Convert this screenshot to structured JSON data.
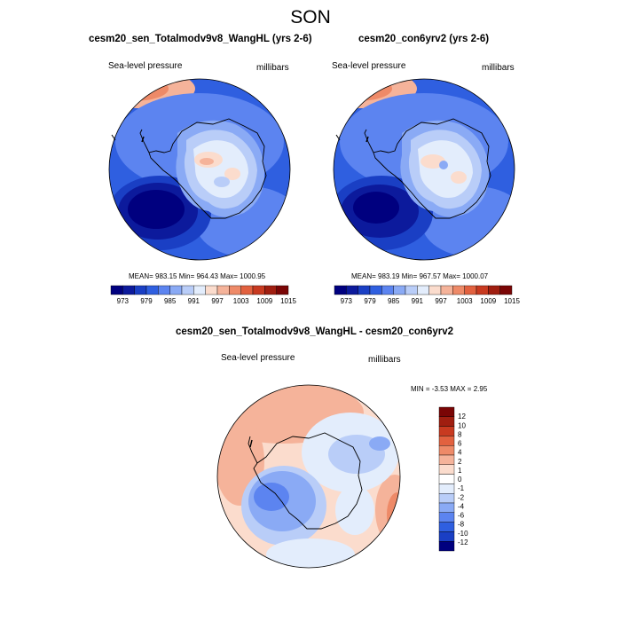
{
  "title": "SON",
  "panels": [
    {
      "title": "cesm20_sen_Totalmodv9v8_WangHL (yrs 2-6)",
      "variable": "Sea-level pressure",
      "units": "millibars",
      "stats": "MEAN= 983.15  Min= 964.43  Max= 1000.95",
      "colorbar_labels": [
        "973",
        "979",
        "985",
        "991",
        "997",
        "1003",
        "1009",
        "1015"
      ]
    },
    {
      "title": "cesm20_con6yrv2 (yrs 2-6)",
      "variable": "Sea-level pressure",
      "units": "millibars",
      "stats": "MEAN= 983.19  Min= 967.57  Max= 1000.07",
      "colorbar_labels": [
        "973",
        "979",
        "985",
        "991",
        "997",
        "1003",
        "1009",
        "1015"
      ]
    }
  ],
  "diff": {
    "title": "cesm20_sen_Totalmodv9v8_WangHL - cesm20_con6yrv2",
    "variable": "Sea-level pressure",
    "units": "millibars",
    "stats": "MIN =  -3.53 MAX =   2.95",
    "colorbar_labels": [
      "12",
      "10",
      "8",
      "6",
      "4",
      "2",
      "1",
      "0",
      "-1",
      "-2",
      "-4",
      "-6",
      "-8",
      "-10",
      "-12"
    ]
  },
  "colors": {
    "abs_scale": [
      "#00007f",
      "#0c1a9c",
      "#1a3fc4",
      "#2f5fe0",
      "#5c84f0",
      "#8aaaf5",
      "#b9cdf8",
      "#e3edfc",
      "#fbdccd",
      "#f5b39a",
      "#ee8a68",
      "#e2613f",
      "#c83a20",
      "#a01e10",
      "#7a0505"
    ],
    "diff_scale": [
      "#7a0505",
      "#a01e10",
      "#c83a20",
      "#e2613f",
      "#ee8a68",
      "#f5b39a",
      "#fbdccd",
      "#ffffff",
      "#e3edfc",
      "#b9cdf8",
      "#8aaaf5",
      "#5c84f0",
      "#2f5fe0",
      "#1a3fc4",
      "#00007f"
    ]
  }
}
